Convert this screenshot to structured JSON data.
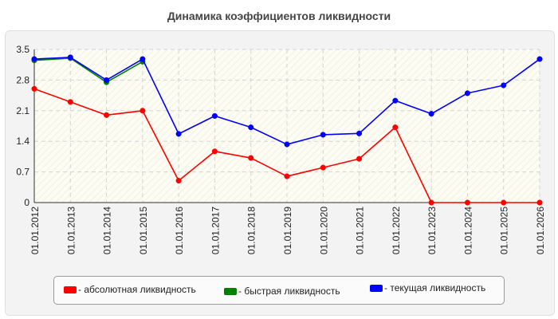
{
  "chart_data": {
    "type": "line",
    "title": "Динамика коэффициентов ликвидности",
    "xlabel": "",
    "ylabel": "",
    "categories": [
      "01.01.2012",
      "01.01.2013",
      "01.01.2014",
      "01.01.2015",
      "01.01.2016",
      "01.01.2017",
      "01.01.2018",
      "01.01.2019",
      "01.01.2020",
      "01.01.2021",
      "01.01.2022",
      "01.01.2023",
      "01.01.2024",
      "01.01.2025",
      "01.01.2026"
    ],
    "y_ticks": [
      "0",
      "0.7",
      "1.4",
      "2.1",
      "2.8",
      "3.5"
    ],
    "ylim": [
      0,
      3.5
    ],
    "grid": true,
    "legend_position": "bottom",
    "series": [
      {
        "name": "- абсолютная ликвидность",
        "color": "#ff0000",
        "values": [
          2.6,
          2.3,
          2.0,
          2.1,
          0.5,
          1.17,
          1.02,
          0.6,
          0.8,
          1.0,
          1.72,
          0.0,
          0.0,
          0.0,
          0.0
        ]
      },
      {
        "name": "- быстрая ликвидность",
        "color": "#008000",
        "values": [
          3.25,
          3.3,
          2.75,
          3.22,
          null,
          null,
          null,
          null,
          null,
          null,
          null,
          null,
          null,
          null,
          null
        ]
      },
      {
        "name": "- текущая ликвидность",
        "color": "#0000ff",
        "values": [
          3.28,
          3.32,
          2.8,
          3.28,
          1.57,
          1.98,
          1.72,
          1.33,
          1.55,
          1.58,
          2.33,
          2.03,
          2.5,
          2.68,
          3.28
        ]
      }
    ]
  }
}
